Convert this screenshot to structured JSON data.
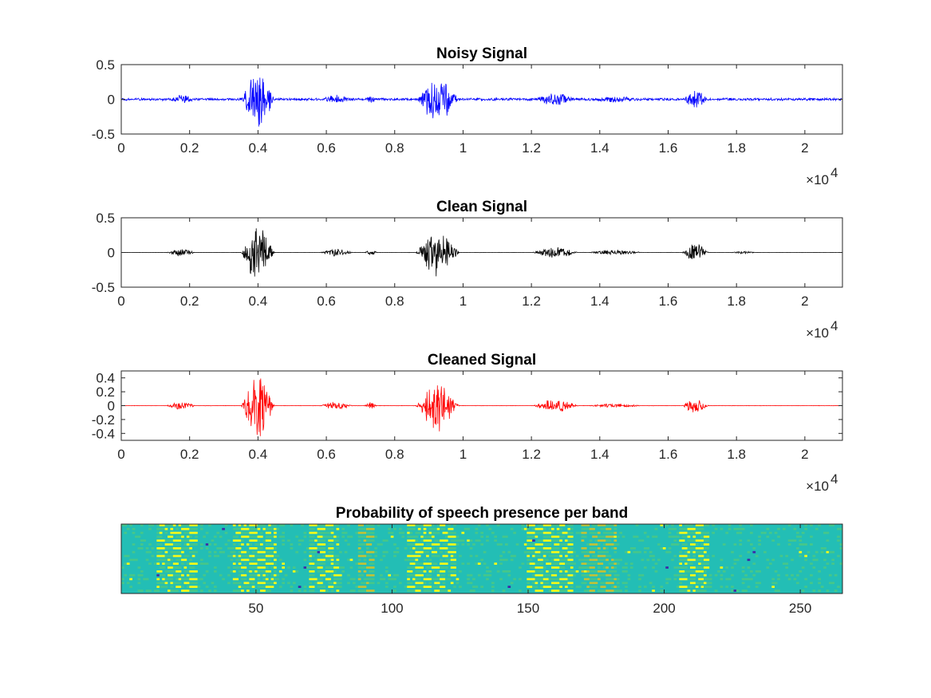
{
  "chart_data": [
    {
      "type": "line",
      "title": "Noisy Signal",
      "xlabel": "",
      "ylabel": "",
      "xlim": [
        0,
        21100
      ],
      "ylim": [
        -0.5,
        0.5
      ],
      "x_ticks": [
        0,
        2000,
        4000,
        6000,
        8000,
        10000,
        12000,
        14000,
        16000,
        18000,
        20000
      ],
      "x_tick_labels": [
        "0",
        "0.2",
        "0.4",
        "0.6",
        "0.8",
        "1",
        "1.2",
        "1.4",
        "1.6",
        "1.8",
        "2"
      ],
      "y_ticks": [
        -0.5,
        0,
        0.5
      ],
      "y_tick_labels": [
        "-0.5",
        "0",
        "0.5"
      ],
      "x_exponent_label": {
        "base": "×10",
        "exp": "4"
      },
      "line_color": "#0000ff",
      "noise_floor": 0.02,
      "segments": [
        {
          "start": 1300,
          "end": 2200,
          "amplitude": 0.07
        },
        {
          "start": 3500,
          "end": 4500,
          "amplitude": 0.48
        },
        {
          "start": 5800,
          "end": 6800,
          "amplitude": 0.07
        },
        {
          "start": 7100,
          "end": 7500,
          "amplitude": 0.05
        },
        {
          "start": 8600,
          "end": 9900,
          "amplitude": 0.36
        },
        {
          "start": 12000,
          "end": 13400,
          "amplitude": 0.1
        },
        {
          "start": 13600,
          "end": 15300,
          "amplitude": 0.05
        },
        {
          "start": 16400,
          "end": 17200,
          "amplitude": 0.16
        }
      ]
    },
    {
      "type": "line",
      "title": "Clean Signal",
      "xlabel": "",
      "ylabel": "",
      "xlim": [
        0,
        21100
      ],
      "ylim": [
        -0.5,
        0.5
      ],
      "x_ticks": [
        0,
        2000,
        4000,
        6000,
        8000,
        10000,
        12000,
        14000,
        16000,
        18000,
        20000
      ],
      "x_tick_labels": [
        "0",
        "0.2",
        "0.4",
        "0.6",
        "0.8",
        "1",
        "1.2",
        "1.4",
        "1.6",
        "1.8",
        "2"
      ],
      "y_ticks": [
        -0.5,
        0,
        0.5
      ],
      "y_tick_labels": [
        "-0.5",
        "0",
        "0.5"
      ],
      "x_exponent_label": {
        "base": "×10",
        "exp": "4"
      },
      "line_color": "#000000",
      "noise_floor": 0.002,
      "segments": [
        {
          "start": 1300,
          "end": 2200,
          "amplitude": 0.06
        },
        {
          "start": 3500,
          "end": 4500,
          "amplitude": 0.47
        },
        {
          "start": 5800,
          "end": 6800,
          "amplitude": 0.06
        },
        {
          "start": 7100,
          "end": 7500,
          "amplitude": 0.05
        },
        {
          "start": 8600,
          "end": 9900,
          "amplitude": 0.36
        },
        {
          "start": 12000,
          "end": 13400,
          "amplitude": 0.09
        },
        {
          "start": 13600,
          "end": 15300,
          "amplitude": 0.04
        },
        {
          "start": 16400,
          "end": 17200,
          "amplitude": 0.15
        },
        {
          "start": 17800,
          "end": 18600,
          "amplitude": 0.02
        }
      ]
    },
    {
      "type": "line",
      "title": "Cleaned Signal",
      "xlabel": "",
      "ylabel": "",
      "xlim": [
        0,
        21100
      ],
      "ylim": [
        -0.5,
        0.5
      ],
      "x_ticks": [
        0,
        2000,
        4000,
        6000,
        8000,
        10000,
        12000,
        14000,
        16000,
        18000,
        20000
      ],
      "x_tick_labels": [
        "0",
        "0.2",
        "0.4",
        "0.6",
        "0.8",
        "1",
        "1.2",
        "1.4",
        "1.6",
        "1.8",
        "2"
      ],
      "y_ticks": [
        -0.4,
        -0.2,
        0,
        0.2,
        0.4
      ],
      "y_tick_labels": [
        "-0.4",
        "-0.2",
        "0",
        "0.2",
        "0.4"
      ],
      "x_exponent_label": {
        "base": "×10",
        "exp": "4"
      },
      "line_color": "#ff0000",
      "noise_floor": 0.003,
      "segments": [
        {
          "start": 1300,
          "end": 2200,
          "amplitude": 0.06
        },
        {
          "start": 3500,
          "end": 4500,
          "amplitude": 0.5
        },
        {
          "start": 5800,
          "end": 6800,
          "amplitude": 0.06
        },
        {
          "start": 7100,
          "end": 7500,
          "amplitude": 0.05
        },
        {
          "start": 8600,
          "end": 9900,
          "amplitude": 0.38
        },
        {
          "start": 12000,
          "end": 13400,
          "amplitude": 0.1
        },
        {
          "start": 13600,
          "end": 15300,
          "amplitude": 0.03
        },
        {
          "start": 16400,
          "end": 17200,
          "amplitude": 0.15
        }
      ]
    },
    {
      "type": "heatmap",
      "title": "Probability of speech presence per band",
      "xlabel": "",
      "ylabel": "",
      "xlim": [
        1,
        265
      ],
      "x_ticks": [
        50,
        100,
        150,
        200,
        250
      ],
      "x_tick_labels": [
        "50",
        "100",
        "150",
        "200",
        "250"
      ],
      "bands": 18,
      "frames": 265,
      "colormap": [
        "#3e26a8",
        "#2e87f6",
        "#23beb5",
        "#46c789",
        "#c4c233",
        "#f9fb15"
      ],
      "base_value": 0.45,
      "active_regions": [
        {
          "start": 14,
          "end": 28,
          "value": 0.95
        },
        {
          "start": 42,
          "end": 57,
          "value": 0.95
        },
        {
          "start": 70,
          "end": 80,
          "value": 0.9
        },
        {
          "start": 88,
          "end": 93,
          "value": 0.85
        },
        {
          "start": 106,
          "end": 123,
          "value": 0.97
        },
        {
          "start": 150,
          "end": 166,
          "value": 0.95
        },
        {
          "start": 170,
          "end": 182,
          "value": 0.85
        },
        {
          "start": 206,
          "end": 216,
          "value": 0.95
        }
      ]
    }
  ]
}
